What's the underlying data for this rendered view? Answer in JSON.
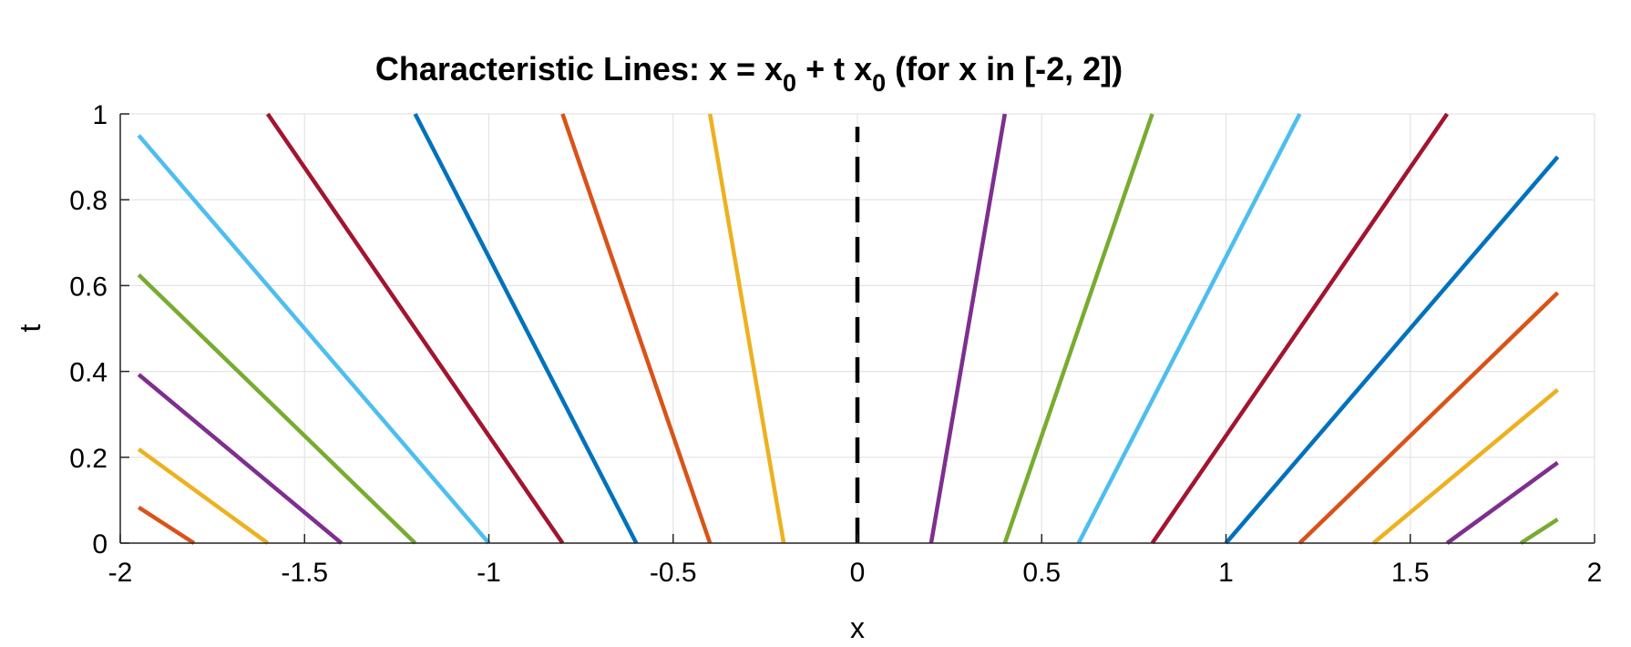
{
  "chart_data": {
    "type": "line",
    "title": {
      "prefix": "Characteristic Lines: x = x",
      "sub1": "0",
      "middle": " + t x",
      "sub2": "0",
      "suffix": " (for x in [-2, 2])"
    },
    "xlabel": "x",
    "ylabel": "t",
    "xlim": [
      -2,
      2
    ],
    "ylim": [
      0,
      1
    ],
    "xticks": [
      "-2",
      "-1.5",
      "-1",
      "-0.5",
      "0",
      "0.5",
      "1",
      "1.5",
      "2"
    ],
    "yticks": [
      "0",
      "0.2",
      "0.4",
      "0.6",
      "0.8",
      "1"
    ],
    "grid": true,
    "reference_line": {
      "x": 0,
      "t_range": [
        0,
        0.97
      ],
      "style": "dashed",
      "color": "#000000"
    },
    "series": [
      {
        "x0": -1.8,
        "color": "#D95319"
      },
      {
        "x0": -1.6,
        "color": "#EDB120"
      },
      {
        "x0": -1.4,
        "color": "#7E2F8E"
      },
      {
        "x0": -1.2,
        "color": "#77AC30"
      },
      {
        "x0": -1.0,
        "color": "#4DBEEE"
      },
      {
        "x0": -0.8,
        "color": "#A2142F"
      },
      {
        "x0": -0.6,
        "color": "#0072BD"
      },
      {
        "x0": -0.4,
        "color": "#D95319"
      },
      {
        "x0": -0.2,
        "color": "#EDB120"
      },
      {
        "x0": 0.2,
        "color": "#7E2F8E"
      },
      {
        "x0": 0.4,
        "color": "#77AC30"
      },
      {
        "x0": 0.6,
        "color": "#4DBEEE"
      },
      {
        "x0": 0.8,
        "color": "#A2142F"
      },
      {
        "x0": 1.0,
        "color": "#0072BD"
      },
      {
        "x0": 1.2,
        "color": "#D95319"
      },
      {
        "x0": 1.4,
        "color": "#EDB120"
      },
      {
        "x0": 1.6,
        "color": "#7E2F8E"
      },
      {
        "x0": 1.8,
        "color": "#77AC30"
      }
    ]
  }
}
